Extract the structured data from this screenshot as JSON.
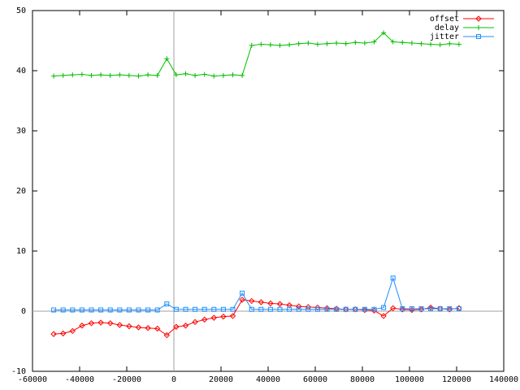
{
  "chart_data": {
    "type": "line",
    "x": [
      -51000,
      -47000,
      -43000,
      -39000,
      -35000,
      -31000,
      -27000,
      -23000,
      -19000,
      -15000,
      -11000,
      -7000,
      -3000,
      1000,
      5000,
      9000,
      13000,
      17000,
      21000,
      25000,
      29000,
      33000,
      37000,
      41000,
      45000,
      49000,
      53000,
      57000,
      61000,
      65000,
      69000,
      73000,
      77000,
      81000,
      85000,
      89000,
      93000,
      97000,
      101000,
      105000,
      109000,
      113000,
      117000,
      121000
    ],
    "series": [
      {
        "name": "offset",
        "color": "#ff0000",
        "marker": "diamond",
        "values": [
          -3.8,
          -3.7,
          -3.3,
          -2.4,
          -2.0,
          -1.9,
          -2.0,
          -2.3,
          -2.5,
          -2.7,
          -2.8,
          -2.9,
          -4.0,
          -2.6,
          -2.4,
          -1.8,
          -1.4,
          -1.1,
          -0.9,
          -0.8,
          1.9,
          1.7,
          1.5,
          1.3,
          1.2,
          1.0,
          0.8,
          0.7,
          0.6,
          0.5,
          0.4,
          0.3,
          0.3,
          0.2,
          0.1,
          -0.8,
          0.5,
          0.3,
          0.2,
          0.3,
          0.6,
          0.4,
          0.3,
          0.5
        ]
      },
      {
        "name": "delay",
        "color": "#00c000",
        "marker": "plus",
        "values": [
          39.1,
          39.2,
          39.3,
          39.4,
          39.2,
          39.3,
          39.2,
          39.3,
          39.2,
          39.1,
          39.3,
          39.2,
          42.0,
          39.3,
          39.5,
          39.2,
          39.4,
          39.1,
          39.2,
          39.3,
          39.2,
          44.2,
          44.4,
          44.3,
          44.2,
          44.3,
          44.5,
          44.6,
          44.4,
          44.5,
          44.6,
          44.5,
          44.7,
          44.6,
          44.8,
          46.3,
          44.8,
          44.7,
          44.6,
          44.5,
          44.4,
          44.3,
          44.5,
          44.4
        ]
      },
      {
        "name": "jitter",
        "color": "#1f8fff",
        "marker": "square",
        "values": [
          0.2,
          0.2,
          0.2,
          0.2,
          0.2,
          0.2,
          0.2,
          0.2,
          0.2,
          0.2,
          0.2,
          0.2,
          1.2,
          0.3,
          0.3,
          0.3,
          0.3,
          0.3,
          0.3,
          0.3,
          3.0,
          0.3,
          0.3,
          0.3,
          0.3,
          0.3,
          0.3,
          0.3,
          0.3,
          0.3,
          0.3,
          0.3,
          0.3,
          0.3,
          0.3,
          0.6,
          5.5,
          0.4,
          0.4,
          0.4,
          0.4,
          0.4,
          0.4,
          0.4
        ]
      }
    ],
    "xlim": [
      -60000,
      140000
    ],
    "xticks": [
      -60000,
      -40000,
      -20000,
      0,
      20000,
      40000,
      60000,
      80000,
      100000,
      120000,
      140000
    ],
    "ylim": [
      -10,
      50
    ],
    "yticks": [
      -10,
      0,
      10,
      20,
      30,
      40,
      50
    ],
    "zero_axes": true,
    "legend": "top-right"
  }
}
